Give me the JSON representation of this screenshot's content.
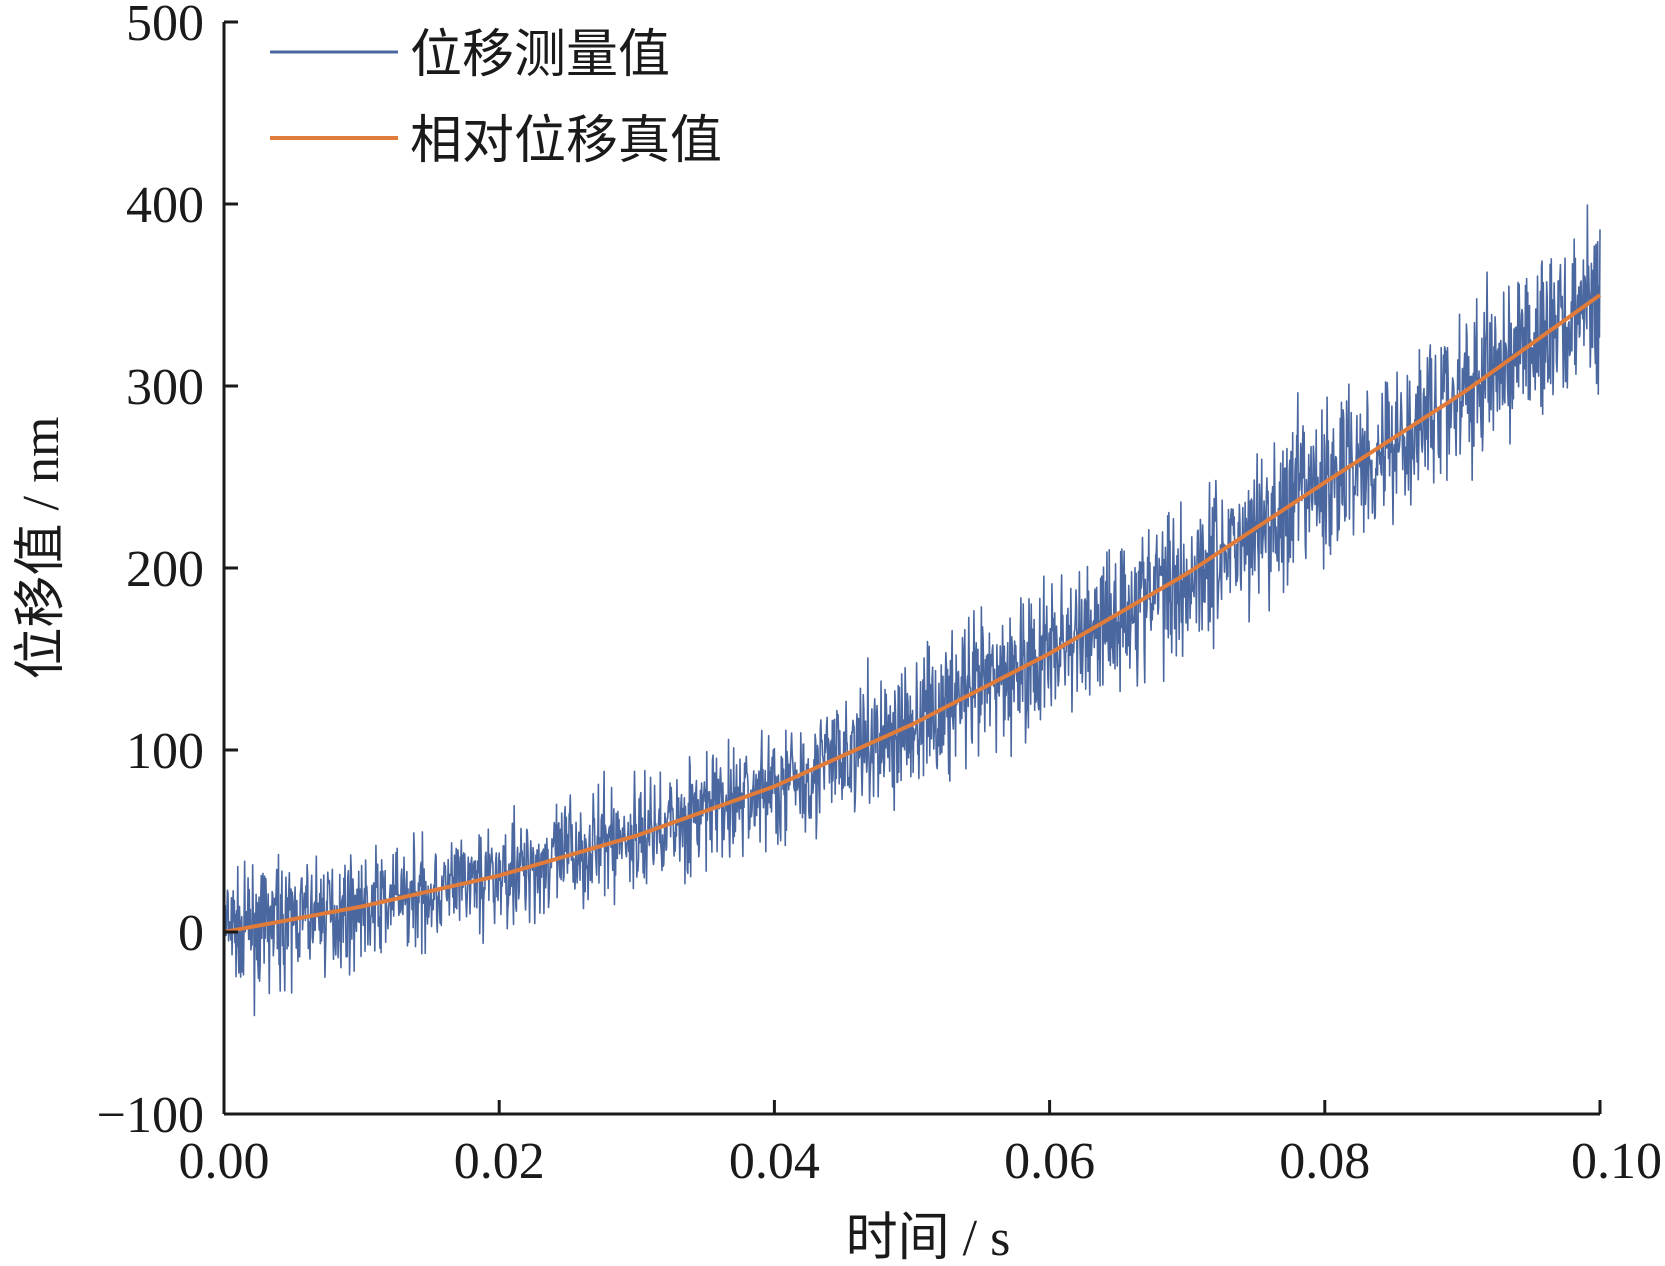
{
  "chart_data": {
    "type": "line",
    "xlabel": "时间 / s",
    "ylabel": "位移值 / nm",
    "xlim": [
      0,
      0.1
    ],
    "ylim": [
      -100,
      500
    ],
    "x_ticks": [
      0,
      0.02,
      0.04,
      0.06,
      0.08,
      0.1
    ],
    "x_tick_labels": [
      "0.00",
      "0.02",
      "0.04",
      "0.06",
      "0.08",
      "0.10"
    ],
    "y_ticks": [
      -100,
      0,
      100,
      200,
      300,
      400,
      500
    ],
    "y_tick_labels": [
      "−100",
      "0",
      "100",
      "200",
      "300",
      "400",
      "500"
    ],
    "grid": false,
    "legend_position": "top-left",
    "series": [
      {
        "name": "位移测量值",
        "color": "#4a67a0",
        "style": "noisy band around true displacement",
        "x": [
          0,
          0.01,
          0.02,
          0.03,
          0.04,
          0.05,
          0.06,
          0.07,
          0.08,
          0.09,
          0.1
        ],
        "center": [
          0,
          14,
          31,
          53,
          80,
          114,
          153,
          197,
          247,
          296,
          350
        ],
        "band_halfwidth": [
          45,
          42,
          42,
          45,
          48,
          55,
          60,
          65,
          65,
          65,
          65
        ]
      },
      {
        "name": "相对位移真值",
        "color": "#e07b3a",
        "x": [
          0,
          0.01,
          0.02,
          0.03,
          0.04,
          0.05,
          0.06,
          0.07,
          0.08,
          0.09,
          0.1
        ],
        "values": [
          0,
          14,
          31,
          53,
          80,
          114,
          153,
          197,
          247,
          296,
          350
        ]
      }
    ]
  }
}
